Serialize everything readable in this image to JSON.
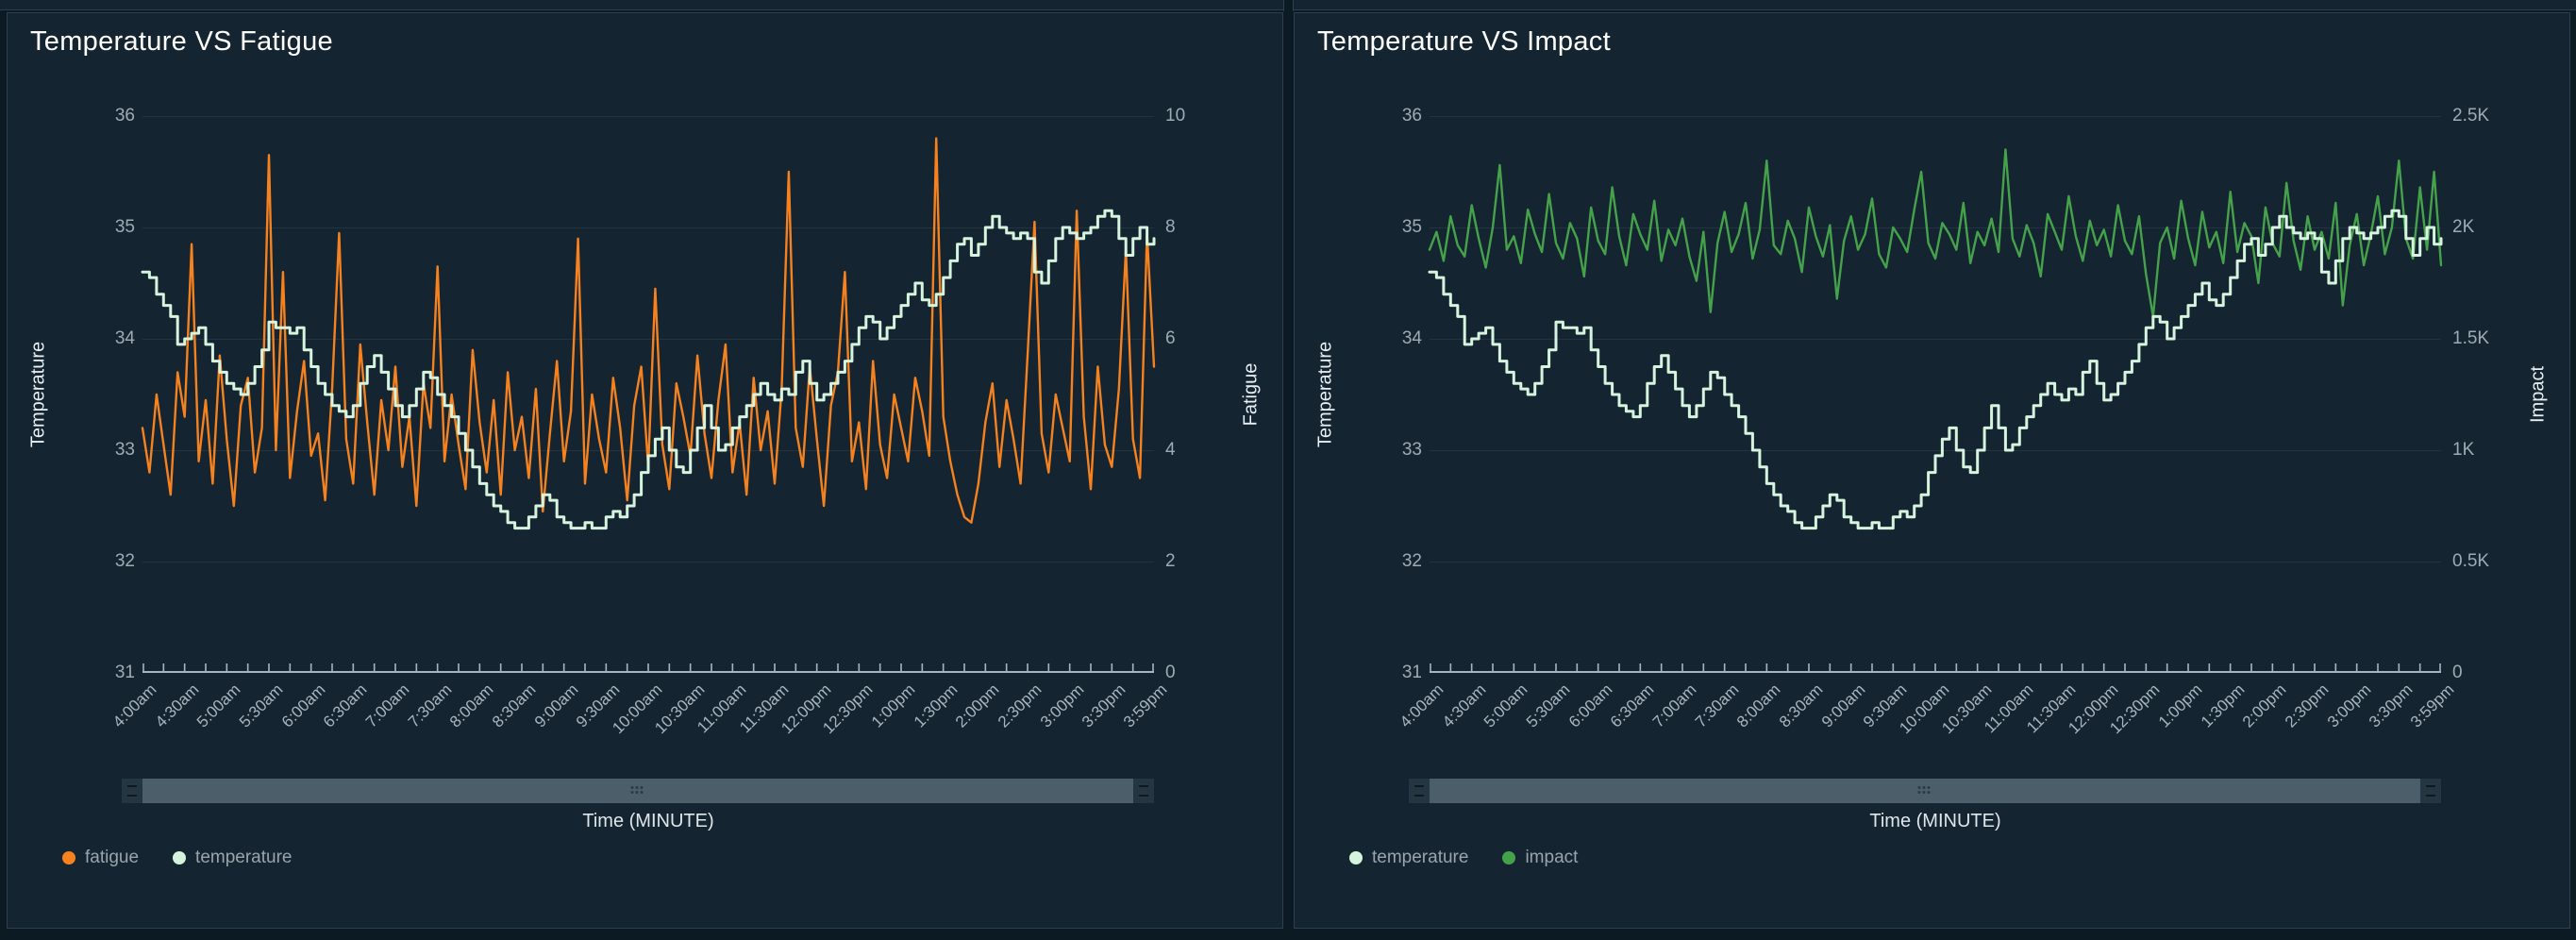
{
  "page": {
    "background": "#0c1a24",
    "panel_background": "#142531",
    "panel_border": "#2b4052",
    "gridline_color": "#223440",
    "axis_line_color": "#a9b5be",
    "tick_label_color": "#9fabb4",
    "legend_text_color": "#99a4ac"
  },
  "chart_data": [
    {
      "type": "line",
      "title": "Temperature VS Fatigue",
      "left_axis": {
        "name": "Temperature",
        "min": 31,
        "max": 36,
        "ticks": [
          "36",
          "35",
          "34",
          "33",
          "32",
          "31"
        ]
      },
      "right_axis": {
        "name": "Fatigue",
        "min": 0,
        "max": 10,
        "ticks": [
          "10",
          "8",
          "6",
          "4",
          "2",
          "0"
        ]
      },
      "x_axis": {
        "name": "Time (MINUTE)",
        "start": "4:00am",
        "end": "3:59pm",
        "total_minutes": 720,
        "labels": [
          "4:00am",
          "4:30am",
          "5:00am",
          "5:30am",
          "6:00am",
          "6:30am",
          "7:00am",
          "7:30am",
          "8:00am",
          "8:30am",
          "9:00am",
          "9:30am",
          "10:00am",
          "10:30am",
          "11:00am",
          "11:30am",
          "12:00pm",
          "12:30pm",
          "1:00pm",
          "1:30pm",
          "2:00pm",
          "2:30pm",
          "3:00pm",
          "3:30pm",
          "3:59pm"
        ]
      },
      "legend": [
        {
          "label": "fatigue",
          "color": "#f5821f"
        },
        {
          "label": "temperature",
          "color": "#d6f3de"
        }
      ],
      "sample_minutes": 5,
      "series": [
        {
          "name": "fatigue",
          "color": "#f5821f",
          "axis": "right",
          "style": "linear",
          "width": 2.4,
          "values": [
            4.4,
            3.6,
            5.0,
            4.1,
            3.2,
            5.4,
            4.6,
            7.7,
            3.8,
            4.9,
            3.4,
            5.7,
            4.2,
            3.0,
            4.8,
            5.3,
            3.6,
            4.4,
            9.3,
            4.0,
            7.2,
            3.5,
            4.7,
            5.6,
            3.9,
            4.3,
            3.1,
            5.1,
            7.9,
            4.2,
            3.4,
            5.9,
            4.5,
            3.2,
            4.9,
            4.0,
            5.5,
            3.7,
            4.6,
            3.0,
            5.2,
            4.4,
            7.3,
            3.8,
            5.0,
            4.1,
            3.3,
            5.8,
            4.5,
            3.6,
            4.9,
            3.2,
            5.4,
            4.0,
            4.6,
            3.5,
            5.1,
            2.9,
            4.3,
            5.6,
            3.8,
            4.7,
            7.8,
            3.4,
            5.0,
            4.2,
            3.6,
            5.3,
            4.4,
            3.1,
            4.8,
            5.5,
            3.7,
            6.9,
            4.1,
            3.3,
            5.2,
            4.6,
            3.9,
            5.7,
            4.3,
            3.5,
            4.9,
            5.9,
            3.6,
            4.5,
            3.2,
            5.3,
            4.0,
            4.7,
            3.4,
            5.1,
            9.0,
            4.4,
            3.7,
            5.5,
            4.2,
            3.0,
            4.8,
            5.4,
            7.2,
            3.8,
            4.5,
            3.3,
            5.6,
            4.1,
            3.5,
            5.0,
            4.4,
            3.8,
            5.3,
            4.7,
            3.9,
            9.6,
            4.6,
            3.8,
            3.2,
            2.8,
            2.7,
            3.4,
            4.5,
            5.2,
            3.7,
            4.9,
            4.2,
            3.4,
            5.7,
            8.1,
            4.3,
            3.6,
            5.0,
            4.4,
            3.8,
            8.3,
            4.6,
            3.3,
            5.5,
            4.1,
            3.7,
            5.1,
            7.6,
            4.2,
            3.5,
            7.9,
            5.5
          ]
        },
        {
          "name": "temperature",
          "color": "#d6f3de",
          "axis": "left",
          "style": "step",
          "width": 3,
          "values": [
            34.6,
            34.55,
            34.4,
            34.3,
            34.2,
            33.95,
            34.0,
            34.05,
            34.1,
            33.95,
            33.8,
            33.7,
            33.6,
            33.55,
            33.5,
            33.6,
            33.75,
            33.9,
            34.15,
            34.1,
            34.1,
            34.05,
            34.1,
            33.9,
            33.75,
            33.6,
            33.5,
            33.4,
            33.35,
            33.3,
            33.4,
            33.6,
            33.75,
            33.85,
            33.7,
            33.55,
            33.4,
            33.3,
            33.4,
            33.55,
            33.7,
            33.65,
            33.5,
            33.4,
            33.3,
            33.15,
            33.0,
            32.85,
            32.7,
            32.6,
            32.5,
            32.45,
            32.35,
            32.3,
            32.3,
            32.4,
            32.5,
            32.6,
            32.55,
            32.4,
            32.35,
            32.3,
            32.3,
            32.35,
            32.3,
            32.3,
            32.4,
            32.45,
            32.4,
            32.5,
            32.6,
            32.8,
            32.95,
            33.1,
            33.2,
            33.0,
            32.85,
            32.8,
            33.0,
            33.2,
            33.4,
            33.2,
            33.0,
            33.05,
            33.2,
            33.3,
            33.4,
            33.5,
            33.6,
            33.5,
            33.45,
            33.55,
            33.5,
            33.7,
            33.8,
            33.6,
            33.45,
            33.5,
            33.6,
            33.7,
            33.8,
            33.95,
            34.1,
            34.2,
            34.15,
            34.0,
            34.1,
            34.2,
            34.3,
            34.4,
            34.5,
            34.35,
            34.3,
            34.4,
            34.55,
            34.7,
            34.85,
            34.9,
            34.75,
            34.85,
            35.0,
            35.1,
            35.0,
            34.95,
            34.9,
            34.95,
            34.9,
            34.6,
            34.5,
            34.7,
            34.9,
            35.0,
            34.95,
            34.9,
            34.95,
            35.0,
            35.1,
            35.15,
            35.1,
            34.9,
            34.75,
            34.9,
            35.0,
            34.85,
            34.9
          ]
        }
      ]
    },
    {
      "type": "line",
      "title": "Temperature VS Impact",
      "left_axis": {
        "name": "Temperature",
        "min": 31,
        "max": 36,
        "ticks": [
          "36",
          "35",
          "34",
          "33",
          "32",
          "31"
        ]
      },
      "right_axis": {
        "name": "Impact",
        "min": 0,
        "max": 2500,
        "ticks": [
          "2.5K",
          "2K",
          "1.5K",
          "1K",
          "0.5K",
          "0"
        ]
      },
      "x_axis": {
        "name": "Time (MINUTE)",
        "start": "4:00am",
        "end": "3:59pm",
        "total_minutes": 720,
        "labels": [
          "4:00am",
          "4:30am",
          "5:00am",
          "5:30am",
          "6:00am",
          "6:30am",
          "7:00am",
          "7:30am",
          "8:00am",
          "8:30am",
          "9:00am",
          "9:30am",
          "10:00am",
          "10:30am",
          "11:00am",
          "11:30am",
          "12:00pm",
          "12:30pm",
          "1:00pm",
          "1:30pm",
          "2:00pm",
          "2:30pm",
          "3:00pm",
          "3:30pm",
          "3:59pm"
        ]
      },
      "legend": [
        {
          "label": "temperature",
          "color": "#d6f3de"
        },
        {
          "label": "impact",
          "color": "#46a24a"
        }
      ],
      "sample_minutes": 5,
      "series": [
        {
          "name": "impact",
          "color": "#46a24a",
          "axis": "right",
          "style": "linear",
          "width": 2.4,
          "values": [
            1900,
            1980,
            1850,
            2050,
            1920,
            1870,
            2100,
            1950,
            1820,
            2000,
            2280,
            1900,
            1960,
            1840,
            2080,
            1970,
            1890,
            2150,
            1930,
            1860,
            2020,
            1950,
            1780,
            2090,
            1940,
            1880,
            2180,
            1960,
            1830,
            2060,
            1970,
            1900,
            2120,
            1850,
            1990,
            1920,
            2040,
            1870,
            1760,
            1980,
            1620,
            1930,
            2070,
            1890,
            1970,
            2110,
            1860,
            1990,
            2300,
            1920,
            1880,
            2030,
            1950,
            1800,
            2090,
            1960,
            1870,
            2010,
            1680,
            1940,
            2050,
            1900,
            1970,
            2130,
            1880,
            1820,
            2000,
            1950,
            1890,
            2080,
            2250,
            1930,
            1860,
            2020,
            1970,
            1900,
            2110,
            1840,
            1980,
            1920,
            2040,
            1890,
            2350,
            1950,
            1870,
            2010,
            1930,
            1780,
            2060,
            1980,
            1900,
            2140,
            1960,
            1850,
            2030,
            1920,
            1990,
            1870,
            2100,
            1940,
            1880,
            2050,
            1790,
            1600,
            1930,
            2000,
            1860,
            2120,
            1950,
            1830,
            2070,
            1910,
            1980,
            1840,
            2160,
            1890,
            2020,
            1960,
            1750,
            2090,
            1930,
            1870,
            2200,
            1940,
            1810,
            2050,
            1900,
            1980,
            1860,
            2110,
            1650,
            1920,
            2060,
            1830,
            1970,
            2140,
            1880,
            2000,
            2300,
            1950,
            1860,
            2180,
            1900,
            2250,
            1830
          ]
        },
        {
          "name": "temperature",
          "color": "#d6f3de",
          "axis": "left",
          "style": "step",
          "width": 3,
          "values": [
            34.6,
            34.55,
            34.4,
            34.3,
            34.2,
            33.95,
            34.0,
            34.05,
            34.1,
            33.95,
            33.8,
            33.7,
            33.6,
            33.55,
            33.5,
            33.6,
            33.75,
            33.9,
            34.15,
            34.1,
            34.1,
            34.05,
            34.1,
            33.9,
            33.75,
            33.6,
            33.5,
            33.4,
            33.35,
            33.3,
            33.4,
            33.6,
            33.75,
            33.85,
            33.7,
            33.55,
            33.4,
            33.3,
            33.4,
            33.55,
            33.7,
            33.65,
            33.5,
            33.4,
            33.3,
            33.15,
            33.0,
            32.85,
            32.7,
            32.6,
            32.5,
            32.45,
            32.35,
            32.3,
            32.3,
            32.4,
            32.5,
            32.6,
            32.55,
            32.4,
            32.35,
            32.3,
            32.3,
            32.35,
            32.3,
            32.3,
            32.4,
            32.45,
            32.4,
            32.5,
            32.6,
            32.8,
            32.95,
            33.1,
            33.2,
            33.0,
            32.85,
            32.8,
            33.0,
            33.2,
            33.4,
            33.2,
            33.0,
            33.05,
            33.2,
            33.3,
            33.4,
            33.5,
            33.6,
            33.5,
            33.45,
            33.55,
            33.5,
            33.7,
            33.8,
            33.6,
            33.45,
            33.5,
            33.6,
            33.7,
            33.8,
            33.95,
            34.1,
            34.2,
            34.15,
            34.0,
            34.1,
            34.2,
            34.3,
            34.4,
            34.5,
            34.35,
            34.3,
            34.4,
            34.55,
            34.7,
            34.85,
            34.9,
            34.75,
            34.85,
            35.0,
            35.1,
            35.0,
            34.95,
            34.9,
            34.95,
            34.9,
            34.6,
            34.5,
            34.7,
            34.9,
            35.0,
            34.95,
            34.9,
            34.95,
            35.0,
            35.1,
            35.15,
            35.1,
            34.9,
            34.75,
            34.9,
            35.0,
            34.85,
            34.9
          ]
        }
      ]
    }
  ]
}
